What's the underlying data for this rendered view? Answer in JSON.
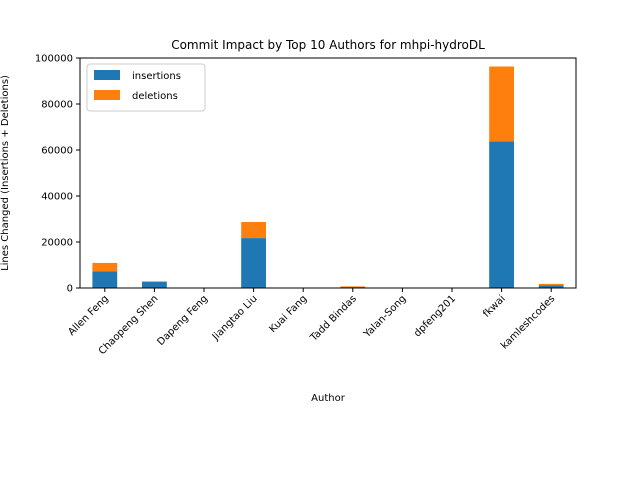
{
  "chart_data": {
    "type": "bar",
    "stacked": true,
    "title": "Commit Impact by Top 10 Authors for mhpi-hydroDL",
    "xlabel": "Author",
    "ylabel": "Lines Changed (Insertions + Deletions)",
    "categories": [
      "Allen Feng",
      "Chaopeng Shen",
      "Dapeng Feng",
      "Jiangtao Liu",
      "Kuai Fang",
      "Tadd Bindas",
      "Yalan-Song",
      "dpfeng201",
      "fkwai",
      "kamleshcodes"
    ],
    "series": [
      {
        "name": "insertions",
        "color": "#1f77b4",
        "values": [
          7200,
          2600,
          150,
          21700,
          80,
          400,
          100,
          80,
          63800,
          1100
        ]
      },
      {
        "name": "deletions",
        "color": "#ff7f0e",
        "values": [
          3700,
          300,
          50,
          7000,
          20,
          300,
          50,
          20,
          32500,
          700
        ]
      }
    ],
    "yticks": [
      0,
      20000,
      40000,
      60000,
      80000,
      100000
    ],
    "ytick_labels": [
      "0",
      "20000",
      "40000",
      "60000",
      "80000",
      "100000"
    ],
    "ylim": [
      0,
      100000
    ],
    "legend": "top-left",
    "grid": false
  }
}
